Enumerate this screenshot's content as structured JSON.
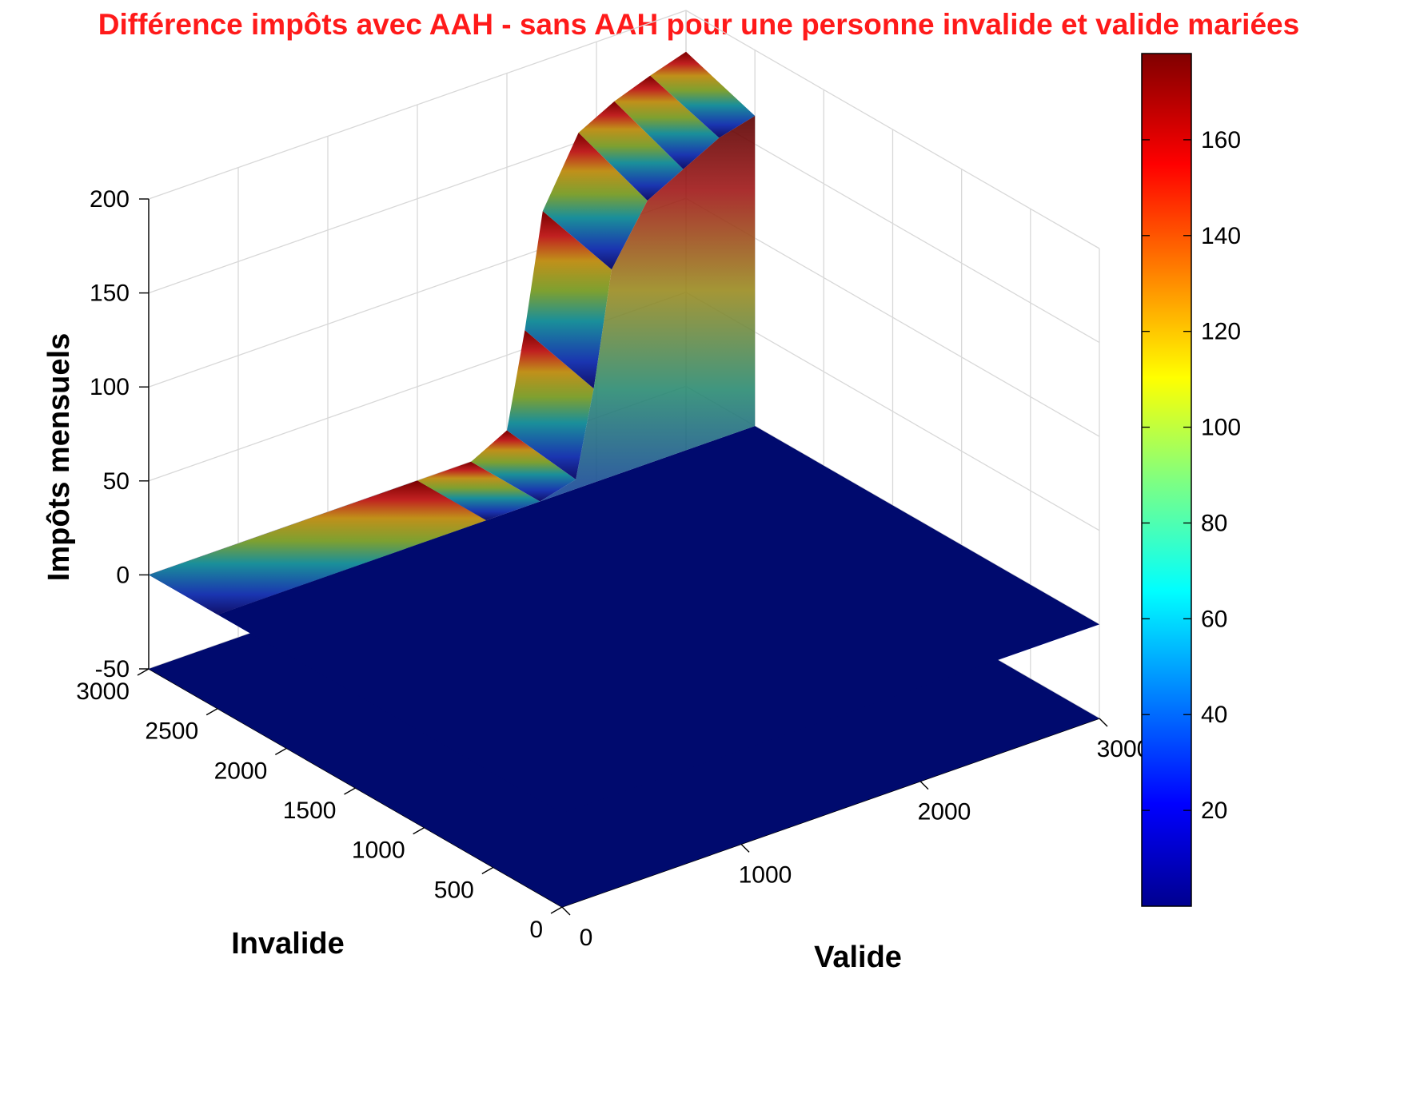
{
  "chart_data": {
    "type": "surface",
    "title": "Différence impôts avec AAH - sans AAH pour une personne invalide et valide mariées",
    "xlabel": "Valide",
    "ylabel": "Invalide",
    "zlabel": "Impôts mensuels",
    "x_ticks": [
      "0",
      "1000",
      "2000",
      "3000"
    ],
    "y_ticks": [
      "0",
      "500",
      "1000",
      "1500",
      "2000",
      "2500",
      "3000"
    ],
    "z_ticks": [
      "-50",
      "0",
      "50",
      "100",
      "150",
      "200"
    ],
    "x_range": [
      0,
      3000
    ],
    "y_range": [
      0,
      3000
    ],
    "z_range": [
      -50,
      200
    ],
    "grid": true,
    "colormap": "jet",
    "colorbar": {
      "ticks": [
        "20",
        "40",
        "60",
        "80",
        "100",
        "120",
        "140",
        "160"
      ],
      "range": [
        0,
        178
      ]
    },
    "surface": {
      "x": [
        0,
        1500,
        1800,
        2000,
        2100,
        2200,
        2400,
        2600,
        2800,
        3000
      ],
      "y_zero_region": [
        0,
        2500
      ],
      "z_at_y_3000": [
        0,
        0,
        0,
        10,
        60,
        120,
        155,
        165,
        172,
        178
      ],
      "z_at_y_2500": [
        0,
        0,
        0,
        5,
        50,
        110,
        140,
        150,
        160,
        165
      ],
      "z_elsewhere": 0
    },
    "colors": {
      "title": "#ff1a1a",
      "floor": "#000a6e",
      "grid": "#d8d8d8"
    }
  }
}
